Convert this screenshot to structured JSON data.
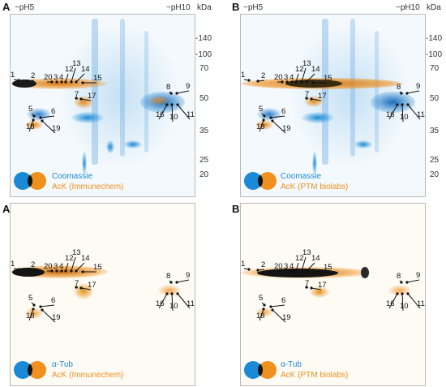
{
  "colors": {
    "coomassie_blue": "#1a8ad6",
    "ack_orange": "#f0901e",
    "dark": "#1a1a1a"
  },
  "mw_ticks": [
    "-140",
    "-100",
    "70",
    "50",
    "35",
    "25",
    "20"
  ],
  "panels": {
    "A": {
      "letter": "A",
      "ph_left": "~pH5",
      "ph_right": "~pH10",
      "unit": "kDa",
      "legend_blue": "Coomassie",
      "legend_orange": "AcK (Immunechem)"
    },
    "B": {
      "letter": "B",
      "ph_left": "~pH5",
      "ph_right": "~pH10",
      "unit": "kDa",
      "legend_blue": "Coomassie",
      "legend_orange": "AcK (PTM biolabs)"
    },
    "A2": {
      "letter": "A‘",
      "legend_blue": "α-Tub",
      "legend_orange": "AcK (Immunechem)"
    },
    "B2": {
      "letter": "B‘",
      "legend_blue": "α-Tub",
      "legend_orange": "AcK (PTM biolabs)"
    }
  },
  "spot_labels": [
    "1",
    "2",
    "20",
    "3",
    "4",
    "12",
    "13",
    "14",
    "15",
    "7",
    "17",
    "5",
    "6",
    "18",
    "19",
    "8",
    "9",
    "16",
    "10",
    "11"
  ]
}
